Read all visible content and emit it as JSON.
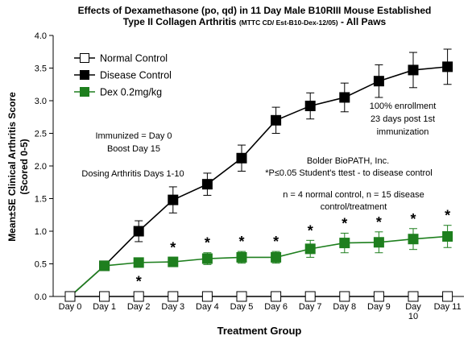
{
  "chart_data": {
    "type": "line",
    "title_line1": "Effects of Dexamethasone (po, qd) in 11 Day Male B10RIII Mouse Established",
    "title_line2_main": "Type II Collagen Arthritis",
    "title_line2_small": "(MTTC CD/ Est-B10-Dex-12/05)",
    "title_line2_tail": " - All Paws",
    "xlabel": "Treatment Group",
    "ylabel_line1": "Mean±SE Clinical Arthritis Score",
    "ylabel_line2": "(Scored 0-5)",
    "ylim": [
      0,
      4
    ],
    "y_ticks": [
      "0.0",
      "0.5",
      "1.0",
      "1.5",
      "2.0",
      "2.5",
      "3.0",
      "3.5",
      "4.0"
    ],
    "categories": [
      "Day 0",
      "Day 1",
      "Day 2",
      "Day 3",
      "Day 4",
      "Day 5",
      "Day 6",
      "Day 7",
      "Day 8",
      "Day 9",
      "Day 10",
      "Day 11"
    ],
    "series": [
      {
        "name": "Normal Control",
        "color": "#000000",
        "marker": "square-open",
        "values": [
          0,
          0,
          0,
          0,
          0,
          0,
          0,
          0,
          0,
          0,
          0,
          0
        ],
        "errors": [
          0,
          0,
          0,
          0,
          0,
          0,
          0,
          0,
          0,
          0,
          0,
          0
        ]
      },
      {
        "name": "Disease Control",
        "color": "#000000",
        "marker": "square-filled",
        "values": [
          0,
          0.47,
          1.0,
          1.48,
          1.72,
          2.12,
          2.7,
          2.92,
          3.05,
          3.3,
          3.47,
          3.52
        ],
        "errors": [
          0,
          0.05,
          0.16,
          0.2,
          0.17,
          0.2,
          0.2,
          0.2,
          0.22,
          0.25,
          0.27,
          0.27
        ]
      },
      {
        "name": "Dex 0.2mg/kg",
        "color": "#1e7f1e",
        "marker": "square-filled",
        "values": [
          0,
          0.47,
          0.52,
          0.53,
          0.58,
          0.6,
          0.6,
          0.73,
          0.82,
          0.83,
          0.88,
          0.92
        ],
        "errors": [
          0,
          0.05,
          0.07,
          0.07,
          0.09,
          0.09,
          0.09,
          0.13,
          0.15,
          0.16,
          0.16,
          0.17
        ]
      }
    ],
    "significance_marker": "*",
    "significant_days": [
      "Day 2",
      "Day 3",
      "Day 4",
      "Day 5",
      "Day 6",
      "Day 7",
      "Day 8",
      "Day 9",
      "Day 10",
      "Day 11"
    ],
    "annotations": {
      "immunized": "Immunized = Day 0",
      "boost": "Boost Day 15",
      "dosing": "Dosing Arthritis Days 1-10",
      "enrollment_1": "100% enrollment",
      "enrollment_2": "23 days post 1st",
      "enrollment_3": "immunization",
      "company": "Bolder BioPATH, Inc.",
      "stat_note": "*P≤0.05 Student's ttest - to disease control",
      "n_note_1": "n = 4 normal control, n = 15 disease",
      "n_note_2": "control/treatment"
    },
    "legend_position": "top-left",
    "grid": false
  }
}
